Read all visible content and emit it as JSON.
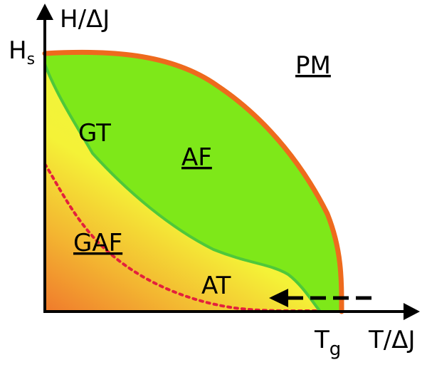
{
  "axes": {
    "y_label": "H/ΔJ",
    "x_label": "T/ΔJ",
    "y_tick_main": "H",
    "y_tick_sub": "s",
    "x_tick_main": "T",
    "x_tick_sub": "g"
  },
  "regions": {
    "pm": "PM",
    "af": "AF",
    "gaf": "GAF",
    "gt": "GT",
    "at": "AT"
  },
  "colors": {
    "af_fill": "#7ee819",
    "boundary_orange": "#ee6a1d",
    "boundary_green": "#4ec83a",
    "dotted_red": "#e3203c",
    "gradient_yellow": "#f4f237",
    "gradient_orange": "#f07a2c",
    "axis": "#000000"
  }
}
